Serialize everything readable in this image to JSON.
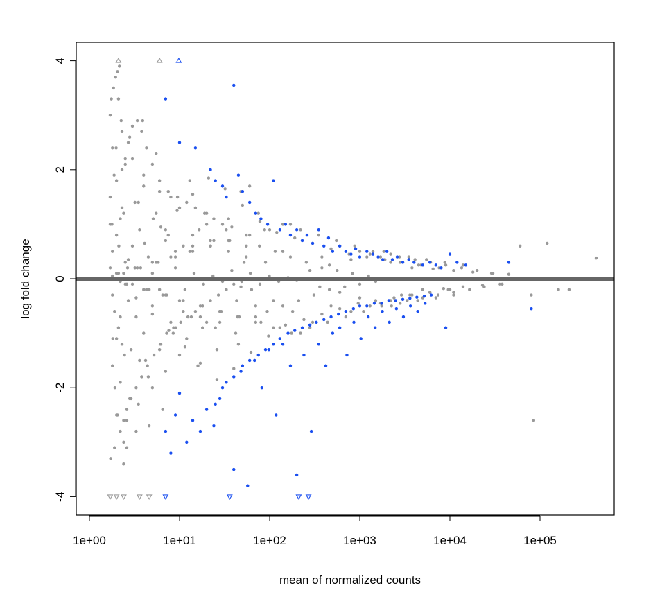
{
  "chart_data": {
    "type": "scatter",
    "title": "",
    "xlabel": "mean of normalized counts",
    "ylabel": "log fold change",
    "x_scale": "log",
    "xlim": [
      1.3,
      7000000
    ],
    "ylim": [
      -4.4,
      4.4
    ],
    "x_ticks": [
      1,
      10,
      100,
      1000,
      10000,
      100000
    ],
    "x_tick_labels": [
      "1e+00",
      "1e+01",
      "1e+02",
      "1e+03",
      "1e+04",
      "1e+05"
    ],
    "y_ticks": [
      -4,
      -2,
      0,
      2,
      4
    ],
    "y_tick_labels": [
      "-4",
      "-2",
      "0",
      "2",
      "4"
    ],
    "grid": false,
    "legend": "none",
    "reference_line": {
      "y": 0,
      "color": "#666666"
    },
    "colors": {
      "not_significant": "#999999",
      "significant": "#1a4ff0",
      "capped_not_significant": "#999999",
      "capped_significant": "#1a4ff0",
      "frame": "#000000"
    },
    "series": [
      {
        "kind": "not-significant",
        "description_visible": false,
        "x": [
          1.7,
          1.8,
          1.8,
          1.9,
          2.0,
          2.1,
          2.2,
          2.3,
          2.5,
          2.7,
          3.0,
          3.3,
          3.6,
          4.0,
          4.5,
          5.0,
          5.5,
          6.0,
          7.0,
          8.0,
          1.7,
          1.8,
          2.0,
          2.2,
          2.5,
          2.8,
          3.2,
          3.6,
          4.0,
          4.5,
          5.0,
          6.0,
          7.0,
          8.5,
          10,
          12,
          14,
          17,
          20,
          25,
          1.8,
          2.0,
          2.3,
          2.6,
          3.0,
          3.5,
          4.0,
          5.0,
          6.0,
          7.0,
          9,
          11,
          14,
          18,
          22,
          28,
          35,
          45,
          55,
          70,
          1.7,
          1.9,
          2.1,
          2.4,
          2.8,
          3.3,
          3.9,
          4.6,
          5.5,
          6.5,
          8,
          10,
          13,
          16,
          20,
          26,
          33,
          42,
          55,
          70,
          90,
          110,
          140,
          180,
          230,
          300,
          380,
          480,
          600,
          800,
          1000,
          1300,
          1700,
          2200,
          2800,
          3600,
          4500,
          6000,
          8000,
          10000,
          2.0,
          2.5,
          3.2,
          4.0,
          5.0,
          6.5,
          8,
          10,
          13,
          17,
          22,
          28,
          36,
          46,
          60,
          80,
          100,
          130,
          170,
          220,
          280,
          360,
          460,
          600,
          800,
          1000,
          1300,
          1700,
          2200,
          2900,
          3800,
          5000,
          6500,
          8500,
          11000,
          14000,
          18000,
          23000,
          30000,
          38000,
          1.8,
          2.2,
          2.7,
          3.3,
          4.1,
          5.0,
          6.2,
          7.6,
          9.4,
          11.5,
          14,
          17,
          21,
          26,
          32,
          40,
          50,
          62,
          78,
          97,
          120,
          150,
          190,
          240,
          300,
          380,
          480,
          600,
          760,
          960,
          1200,
          1500,
          1900,
          2400,
          3000,
          3800,
          4800,
          6000,
          7600,
          9600,
          1.9,
          2.4,
          3.0,
          3.7,
          4.6,
          5.8,
          7.2,
          9.0,
          11,
          14,
          18,
          22,
          28,
          35,
          44,
          55,
          70,
          88,
          110,
          140,
          175,
          220,
          280,
          350,
          440,
          550,
          700,
          880,
          1100,
          1400,
          1750,
          2200,
          2800,
          3500,
          4400,
          5500,
          7000,
          8800,
          11000,
          14000,
          1.7,
          2.0,
          2.4,
          2.9,
          3.5,
          4.2,
          5.1,
          6.2,
          7.5,
          9.1,
          11,
          13.5,
          16.5,
          20,
          24,
          29,
          35,
          43,
          52,
          63,
          77,
          94,
          115,
          140,
          170,
          210,
          255,
          310,
          380,
          460,
          560,
          680,
          830,
          1000,
          1250,
          1500,
          1850,
          2250,
          2750,
          3350,
          4100,
          5000,
          6100,
          7400,
          9000,
          11000,
          13500,
          16500,
          20000,
          24000,
          29000,
          36000,
          45000,
          60000,
          80000,
          120000,
          160000,
          210000,
          420000,
          85000,
          2.1,
          2.6,
          3.4,
          4.3,
          5.5,
          7.0,
          9.0,
          11.5,
          14.5,
          18.5,
          23.5,
          30,
          38,
          48,
          61,
          78,
          99,
          126,
          160,
          200,
          1.75,
          1.85,
          1.95,
          2.05,
          2.15,
          2.25,
          2.4,
          2.6,
          1.72,
          1.78,
          1.82,
          1.88,
          1.92,
          1.98,
          2.05,
          2.12,
          2.2,
          2.3,
          2.45,
          2.65,
          2.3,
          2.5,
          2.7,
          3.0,
          3.4,
          3.8,
          4.3,
          5.0,
          6.0,
          7.5,
          9.5,
          12,
          15,
          19,
          24,
          30,
          38,
          48,
          60,
          75,
          2.2,
          2.4,
          2.6,
          2.9,
          3.3,
          3.8,
          4.4,
          5.2,
          6.1,
          7.2,
          8.6,
          10.3,
          12.4,
          15,
          18,
          22,
          27,
          33,
          40,
          49
        ],
        "y": [
          0.2,
          -0.3,
          0.5,
          -0.6,
          0.8,
          -0.9,
          1.1,
          -1.2,
          0.3,
          -0.4,
          0.6,
          -0.7,
          0.9,
          -1.0,
          0.4,
          -0.5,
          1.2,
          -1.3,
          0.7,
          -0.8,
          1.5,
          -1.6,
          1.8,
          -1.9,
          2.1,
          -2.2,
          1.4,
          -1.5,
          1.7,
          -1.8,
          0.1,
          -0.2,
          0.9,
          -1.0,
          1.3,
          -1.1,
          0.6,
          -0.7,
          1.0,
          -0.9,
          2.4,
          -2.5,
          2.7,
          -2.6,
          2.2,
          -2.3,
          1.9,
          -2.0,
          1.6,
          -1.7,
          0.5,
          -0.6,
          0.8,
          -0.9,
          0.7,
          -0.8,
          1.1,
          -1.2,
          0.4,
          -0.5,
          3.0,
          -3.1,
          3.3,
          -3.4,
          2.6,
          -2.8,
          2.9,
          -2.7,
          2.3,
          -2.4,
          1.5,
          -1.4,
          1.8,
          -1.6,
          1.2,
          -1.3,
          0.9,
          -1.0,
          0.6,
          -0.7,
          0.3,
          -0.4,
          0.5,
          -0.6,
          0.7,
          -0.8,
          0.4,
          -0.5,
          0.6,
          -0.6,
          0.5,
          -0.5,
          0.4,
          -0.4,
          0.3,
          -0.3,
          0.25,
          -0.25,
          0.2,
          -0.2,
          0.1,
          -0.1,
          0.2,
          -0.2,
          0.3,
          -0.3,
          0.4,
          -0.4,
          0.5,
          -0.5,
          0.6,
          -0.6,
          0.7,
          -0.7,
          0.8,
          -0.8,
          0.9,
          -0.9,
          1.0,
          -1.0,
          0.15,
          -0.15,
          0.25,
          -0.25,
          0.35,
          -0.35,
          0.45,
          -0.45,
          0.3,
          -0.3,
          0.2,
          -0.2,
          0.18,
          -0.18,
          0.15,
          -0.15,
          0.12,
          -0.12,
          0.1,
          -0.1,
          0.05,
          -0.05,
          0.35,
          -0.35,
          0.65,
          -0.65,
          0.95,
          -0.95,
          1.25,
          -1.25,
          1.55,
          -1.55,
          1.85,
          -1.85,
          1.65,
          -1.65,
          1.35,
          -1.35,
          1.05,
          -1.05,
          0.85,
          -0.85,
          0.75,
          -0.75,
          0.65,
          -0.65,
          0.55,
          -0.55,
          0.45,
          -0.45,
          0.4,
          -0.4,
          0.35,
          -0.35,
          0.3,
          -0.3,
          0.25,
          -0.25,
          0.2,
          -0.2,
          0.0,
          0.1,
          -0.1,
          0.2,
          -0.2,
          0.3,
          -0.3,
          0.4,
          -0.4,
          0.5,
          -0.5,
          0.6,
          -0.6,
          0.7,
          -0.7,
          0.8,
          -0.8,
          0.9,
          -0.9,
          1.0,
          -1.0,
          0.9,
          -0.9,
          0.8,
          -0.8,
          0.7,
          -0.7,
          0.6,
          -0.6,
          0.5,
          -0.5,
          0.45,
          -0.45,
          0.4,
          -0.4,
          0.35,
          -0.35,
          0.3,
          -0.3,
          0.25,
          1.0,
          -1.1,
          1.2,
          -1.3,
          1.4,
          -1.5,
          1.1,
          -1.2,
          0.8,
          -0.9,
          0.6,
          -0.7,
          0.9,
          -0.8,
          0.7,
          -0.6,
          0.5,
          -0.4,
          0.3,
          -0.2,
          0.6,
          -0.6,
          0.5,
          -0.5,
          0.4,
          -0.4,
          0.3,
          -0.3,
          0.2,
          -0.2,
          0.15,
          -0.15,
          0.1,
          -0.1,
          0.05,
          -0.05,
          0.5,
          -0.5,
          0.4,
          -0.4,
          0.35,
          -0.35,
          0.3,
          -0.3,
          0.25,
          -0.25,
          0.2,
          -0.2,
          0.15,
          -0.15,
          0.1,
          -0.1,
          0.08,
          0.6,
          -0.3,
          0.65,
          -0.2,
          -0.2,
          0.38,
          -2.6,
          0.1,
          -0.1,
          0.2,
          -0.2,
          0.3,
          -0.3,
          0.2,
          -0.2,
          0.1,
          -0.1,
          0.05,
          -0.05,
          0.15,
          -0.15,
          0.1,
          -0.1,
          0.05,
          -0.05,
          0.02,
          -0.02,
          3.3,
          3.5,
          3.7,
          3.8,
          3.9,
          2.9,
          -3.0,
          -3.1,
          -3.3,
          1.0,
          -1.1,
          1.9,
          -2.0,
          2.4,
          -2.5,
          0.6,
          -0.7,
          1.3,
          -1.4,
          0.2,
          2.0,
          2.2,
          2.5,
          2.8,
          2.9,
          2.7,
          2.4,
          2.1,
          1.8,
          1.6,
          1.5,
          1.4,
          1.3,
          1.2,
          1.1,
          1.0,
          0.95,
          1.6,
          1.7,
          1.2,
          -2.8,
          -2.6,
          -2.4,
          -2.2,
          -2.0,
          -1.8,
          -1.6,
          -1.4,
          -1.2,
          -1.0,
          -0.9,
          -0.8,
          -0.7,
          -0.6,
          -0.5,
          -0.4,
          -0.3,
          -0.2,
          -0.1,
          -0.05
        ]
      },
      {
        "kind": "significant",
        "x": [
          7,
          10,
          15,
          22,
          25,
          30,
          33,
          40,
          45,
          50,
          60,
          70,
          80,
          95,
          110,
          130,
          150,
          170,
          200,
          230,
          260,
          300,
          350,
          400,
          450,
          500,
          600,
          700,
          800,
          900,
          1000,
          1200,
          1400,
          1600,
          1800,
          2000,
          2300,
          2600,
          3000,
          3500,
          4000,
          5000,
          6000,
          7000,
          8000,
          10000,
          12000,
          15000,
          45000,
          80000,
          25,
          30,
          40,
          50,
          60,
          75,
          90,
          110,
          130,
          160,
          190,
          230,
          280,
          330,
          400,
          480,
          580,
          700,
          850,
          1000,
          1200,
          1450,
          1750,
          2100,
          2500,
          3000,
          3600,
          4300,
          5200,
          6200,
          7,
          8,
          9,
          10,
          12,
          14,
          17,
          20,
          24,
          28,
          33,
          40,
          48,
          57,
          68,
          82,
          98,
          118,
          140,
          170,
          200,
          240,
          290,
          350,
          420,
          500,
          600,
          720,
          860,
          1030,
          1240,
          1480,
          1780,
          2130,
          2550,
          3050,
          3650,
          4400,
          5300,
          9000
        ],
        "y": [
          3.3,
          2.5,
          2.4,
          2.0,
          1.8,
          1.7,
          1.5,
          3.55,
          1.9,
          1.6,
          1.4,
          1.2,
          1.1,
          1.0,
          1.8,
          0.9,
          1.0,
          0.8,
          0.9,
          0.7,
          0.8,
          0.65,
          0.9,
          0.6,
          0.75,
          0.5,
          0.6,
          0.5,
          0.45,
          0.55,
          0.4,
          0.5,
          0.45,
          0.4,
          0.35,
          0.5,
          0.35,
          0.4,
          0.3,
          0.35,
          0.3,
          0.25,
          0.3,
          0.25,
          0.2,
          0.45,
          0.3,
          0.25,
          0.3,
          -0.55,
          -2.3,
          -2.0,
          -1.8,
          -1.6,
          -1.5,
          -1.4,
          -1.3,
          -1.2,
          -1.1,
          -1.0,
          -0.95,
          -0.9,
          -0.85,
          -0.8,
          -0.75,
          -0.7,
          -0.65,
          -0.6,
          -0.55,
          -0.5,
          -0.5,
          -0.45,
          -0.45,
          -0.4,
          -0.4,
          -0.38,
          -0.36,
          -0.34,
          -0.32,
          -0.3,
          -2.8,
          -3.2,
          -2.5,
          -2.1,
          -3.0,
          -2.6,
          -2.8,
          -2.4,
          -2.7,
          -2.2,
          -1.9,
          -3.5,
          -1.7,
          -3.8,
          -1.5,
          -2.0,
          -1.3,
          -2.5,
          -1.2,
          -1.6,
          -3.6,
          -1.4,
          -2.8,
          -1.2,
          -1.6,
          -1.0,
          -0.9,
          -1.4,
          -0.8,
          -1.1,
          -0.7,
          -0.9,
          -0.6,
          -0.8,
          -0.55,
          -0.7,
          -0.5,
          -0.6,
          -0.45,
          -0.9
        ]
      },
      {
        "kind": "capped-up-not-significant",
        "x": [
          2.1,
          6.0
        ],
        "y": [
          4,
          4
        ]
      },
      {
        "kind": "capped-up-significant",
        "x": [
          9.8
        ],
        "y": [
          4
        ]
      },
      {
        "kind": "capped-down-not-significant",
        "x": [
          1.7,
          2.0,
          2.4,
          3.6,
          4.6
        ],
        "y": [
          -4,
          -4,
          -4,
          -4,
          -4
        ]
      },
      {
        "kind": "capped-down-significant",
        "x": [
          7.0,
          36,
          210,
          270
        ],
        "y": [
          -4,
          -4,
          -4,
          -4
        ]
      }
    ]
  }
}
